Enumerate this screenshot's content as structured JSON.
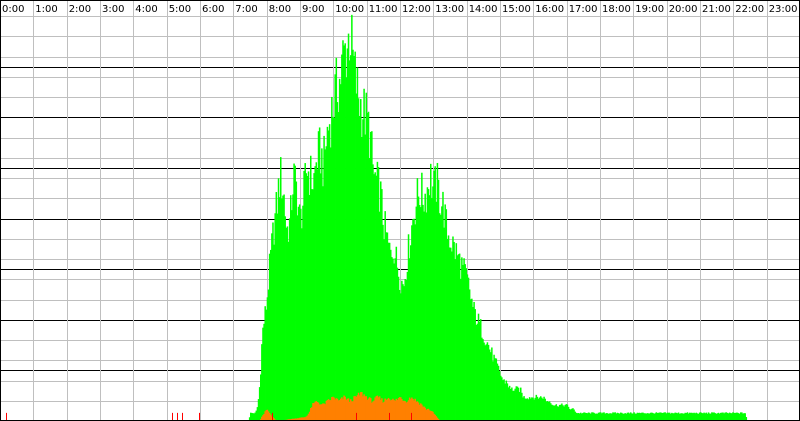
{
  "chart_data": {
    "type": "bar",
    "title": "",
    "xlabel": "",
    "ylabel": "",
    "x_unit": "minute-of-day",
    "xlim": [
      0,
      1440
    ],
    "ylim": [
      0,
      100
    ],
    "bin_minutes": 2,
    "hour_labels": [
      "0:00",
      "1:00",
      "2:00",
      "3:00",
      "4:00",
      "5:00",
      "6:00",
      "7:00",
      "8:00",
      "9:00",
      "10:00",
      "11:00",
      "12:00",
      "13:00",
      "14:00",
      "15:00",
      "16:00",
      "17:00",
      "18:00",
      "19:00",
      "20:00",
      "21:00",
      "22:00",
      "23:00"
    ],
    "grid": {
      "minor_every": 5,
      "major_every": 12.5,
      "vertical_every_minutes": 60
    },
    "colors": {
      "green": "#00ff00",
      "orange": "#ff8000",
      "red": "#ff0000",
      "grid_minor": "#bfbfbf",
      "grid_major": "#000000",
      "background": "#ffffff"
    },
    "series": [
      {
        "color": "green",
        "knots": [
          [
            448,
            0
          ],
          [
            450,
            2
          ],
          [
            456,
            2
          ],
          [
            460,
            2
          ],
          [
            464,
            4
          ],
          [
            468,
            10
          ],
          [
            472,
            22
          ],
          [
            476,
            26
          ],
          [
            480,
            30
          ],
          [
            486,
            40
          ],
          [
            492,
            48
          ],
          [
            498,
            54
          ],
          [
            504,
            62
          ],
          [
            510,
            58
          ],
          [
            516,
            48
          ],
          [
            522,
            50
          ],
          [
            528,
            62
          ],
          [
            534,
            58
          ],
          [
            540,
            50
          ],
          [
            546,
            56
          ],
          [
            552,
            64
          ],
          [
            558,
            62
          ],
          [
            564,
            60
          ],
          [
            570,
            66
          ],
          [
            576,
            68
          ],
          [
            582,
            64
          ],
          [
            588,
            72
          ],
          [
            594,
            76
          ],
          [
            600,
            80
          ],
          [
            606,
            84
          ],
          [
            612,
            86
          ],
          [
            618,
            92
          ],
          [
            624,
            94
          ],
          [
            630,
            98
          ],
          [
            636,
            90
          ],
          [
            642,
            84
          ],
          [
            648,
            80
          ],
          [
            654,
            78
          ],
          [
            660,
            76
          ],
          [
            666,
            72
          ],
          [
            672,
            62
          ],
          [
            678,
            60
          ],
          [
            684,
            58
          ],
          [
            690,
            50
          ],
          [
            696,
            46
          ],
          [
            702,
            42
          ],
          [
            708,
            44
          ],
          [
            714,
            40
          ],
          [
            720,
            36
          ],
          [
            726,
            34
          ],
          [
            732,
            40
          ],
          [
            738,
            46
          ],
          [
            744,
            52
          ],
          [
            750,
            56
          ],
          [
            756,
            58
          ],
          [
            762,
            56
          ],
          [
            768,
            58
          ],
          [
            774,
            62
          ],
          [
            780,
            58
          ],
          [
            786,
            60
          ],
          [
            792,
            56
          ],
          [
            798,
            54
          ],
          [
            804,
            48
          ],
          [
            810,
            46
          ],
          [
            816,
            44
          ],
          [
            822,
            42
          ],
          [
            828,
            40
          ],
          [
            834,
            38
          ],
          [
            840,
            36
          ],
          [
            846,
            32
          ],
          [
            852,
            28
          ],
          [
            858,
            26
          ],
          [
            864,
            24
          ],
          [
            870,
            22
          ],
          [
            876,
            20
          ],
          [
            882,
            18
          ],
          [
            888,
            16
          ],
          [
            894,
            14
          ],
          [
            900,
            12
          ],
          [
            906,
            10
          ],
          [
            912,
            10
          ],
          [
            918,
            8
          ],
          [
            924,
            8
          ],
          [
            930,
            8
          ],
          [
            936,
            8
          ],
          [
            942,
            6
          ],
          [
            948,
            6
          ],
          [
            954,
            6
          ],
          [
            960,
            6
          ],
          [
            966,
            6
          ],
          [
            972,
            6
          ],
          [
            978,
            6
          ],
          [
            984,
            5
          ],
          [
            990,
            5
          ],
          [
            996,
            4
          ],
          [
            1002,
            4
          ],
          [
            1008,
            4
          ],
          [
            1014,
            4
          ],
          [
            1020,
            4
          ],
          [
            1026,
            3
          ],
          [
            1032,
            3
          ],
          [
            1038,
            2
          ],
          [
            1044,
            2
          ],
          [
            1050,
            2
          ],
          [
            1060,
            2
          ],
          [
            1080,
            2
          ],
          [
            1100,
            2
          ],
          [
            1120,
            2
          ],
          [
            1140,
            2
          ],
          [
            1160,
            2
          ],
          [
            1180,
            2
          ],
          [
            1200,
            2
          ],
          [
            1220,
            2
          ],
          [
            1240,
            2
          ],
          [
            1260,
            2
          ],
          [
            1280,
            2
          ],
          [
            1300,
            2
          ],
          [
            1320,
            2
          ],
          [
            1342,
            2
          ],
          [
            1344,
            0
          ]
        ]
      },
      {
        "color": "orange",
        "knots": [
          [
            468,
            0
          ],
          [
            470,
            1
          ],
          [
            476,
            2
          ],
          [
            480,
            3
          ],
          [
            490,
            1
          ],
          [
            498,
            0
          ],
          [
            550,
            1
          ],
          [
            556,
            2
          ],
          [
            562,
            4
          ],
          [
            570,
            5
          ],
          [
            580,
            4
          ],
          [
            590,
            5
          ],
          [
            600,
            6
          ],
          [
            610,
            5
          ],
          [
            620,
            6
          ],
          [
            630,
            5
          ],
          [
            640,
            6
          ],
          [
            650,
            7
          ],
          [
            660,
            6
          ],
          [
            670,
            5
          ],
          [
            680,
            6
          ],
          [
            690,
            5
          ],
          [
            700,
            6
          ],
          [
            710,
            5
          ],
          [
            720,
            6
          ],
          [
            730,
            5
          ],
          [
            740,
            6
          ],
          [
            750,
            5
          ],
          [
            760,
            4
          ],
          [
            766,
            3
          ],
          [
            772,
            3
          ],
          [
            780,
            2
          ],
          [
            786,
            1
          ],
          [
            792,
            0
          ]
        ]
      },
      {
        "color": "red",
        "spikes": [
          [
            10,
            2
          ],
          [
            310,
            2
          ],
          [
            318,
            2
          ],
          [
            328,
            2
          ],
          [
            358,
            2
          ],
          [
            490,
            2
          ],
          [
            640,
            2
          ],
          [
            700,
            2
          ],
          [
            740,
            2
          ]
        ]
      }
    ]
  }
}
